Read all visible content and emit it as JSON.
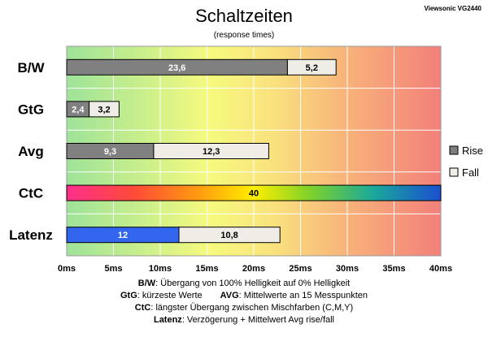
{
  "header": {
    "title": "Schaltzeiten",
    "subtitle": "(response times)",
    "model": "Viewsonic VG2440"
  },
  "chart_data": {
    "type": "bar",
    "orientation": "horizontal",
    "stacked": true,
    "title": "Schaltzeiten",
    "subtitle": "(response times)",
    "categories": [
      "B/W",
      "GtG",
      "Avg",
      "CtC",
      "Latenz"
    ],
    "series": [
      {
        "name": "Rise",
        "color": "#808080",
        "values": [
          23.6,
          2.4,
          9.3,
          null,
          null
        ]
      },
      {
        "name": "Fall",
        "color": "#f0ede6",
        "values": [
          5.2,
          3.2,
          12.3,
          null,
          10.8
        ]
      }
    ],
    "special_bars": [
      {
        "category": "CtC",
        "value": 40,
        "fill": "rainbow"
      },
      {
        "category": "Latenz",
        "value": 12,
        "fill": "#3366ee"
      }
    ],
    "data_labels": [
      [
        "23,6",
        "5,2"
      ],
      [
        "2,4",
        "3,2"
      ],
      [
        "9,3",
        "12,3"
      ],
      [
        "40"
      ],
      [
        "12",
        "10,8"
      ]
    ],
    "x_ticks": [
      "0ms",
      "5ms",
      "10ms",
      "15ms",
      "20ms",
      "25ms",
      "30ms",
      "35ms",
      "40ms"
    ],
    "xlim": [
      0,
      40
    ],
    "background": "green-to-red gradient across the time axis",
    "grid": true,
    "legend": {
      "placement": "right",
      "entries": [
        "Rise",
        "Fall"
      ]
    }
  },
  "footer": {
    "line1_key": "B/W",
    "line1_text": ":  Übergang von 100% Helligkeit auf 0% Helligkeit",
    "line2_key_a": "GtG",
    "line2_text_a": ": kürzeste  Werte",
    "line2_key_b": "AVG",
    "line2_text_b": ": Mittelwerte  an 15 Messpunkten",
    "line3_key": "CtC",
    "line3_text": ": längster Übergang  zwischen Mischfarben  (C,M,Y)",
    "line4_key": "Latenz",
    "line4_text": ": Verzögerung  + Mittelwert Avg rise/fall"
  }
}
